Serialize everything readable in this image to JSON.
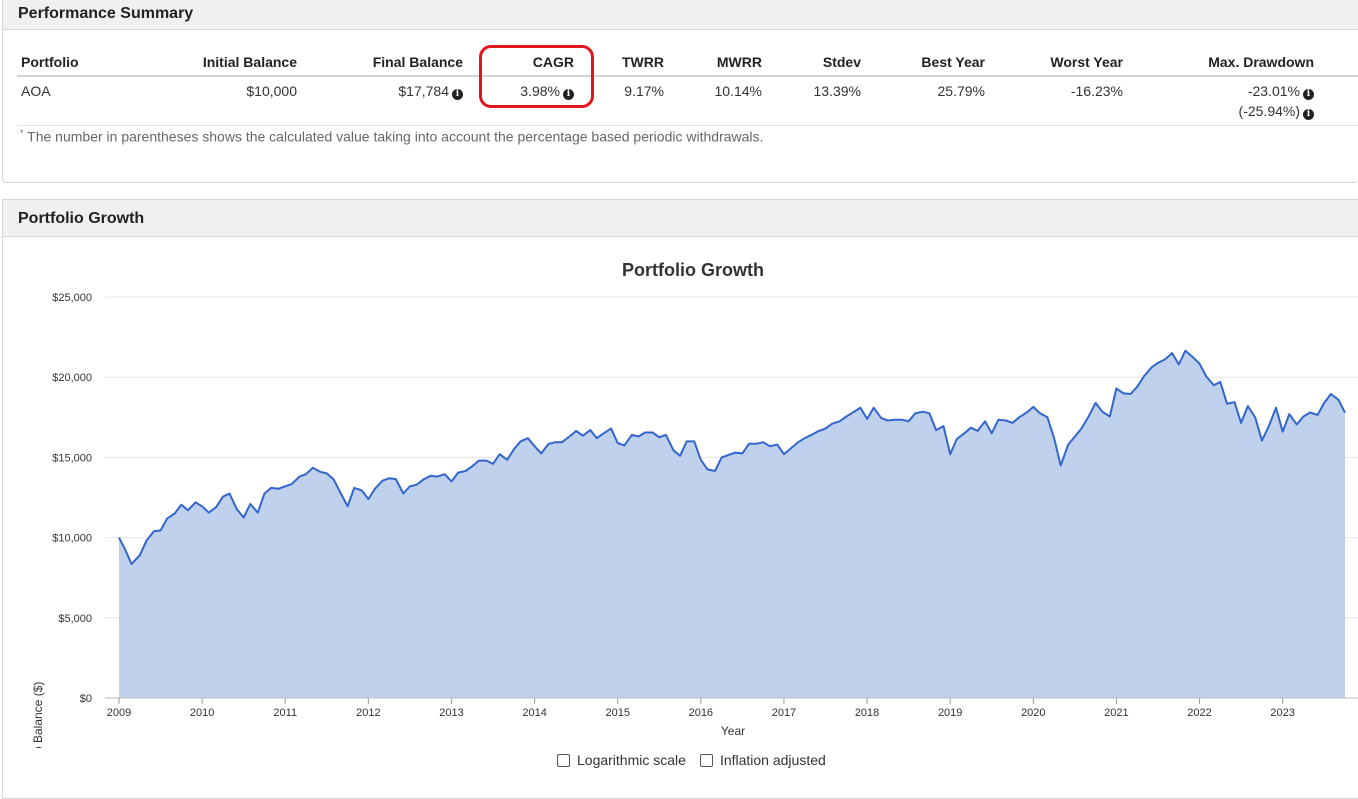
{
  "performance": {
    "title": "Performance Summary",
    "columns": [
      "Portfolio",
      "Initial Balance",
      "Final Balance",
      "CAGR",
      "TWRR",
      "MWRR",
      "Stdev",
      "Best Year",
      "Worst Year",
      "Max. Drawdown"
    ],
    "row": {
      "portfolio": "AOA",
      "initial_balance": "$10,000",
      "final_balance": "$17,784",
      "cagr": "3.98%",
      "twrr": "9.17%",
      "mwrr": "10.14%",
      "stdev": "13.39%",
      "best_year": "25.79%",
      "worst_year": "-16.23%",
      "max_drawdown": "-23.01%",
      "max_drawdown_withdrawals": "(-25.94%)"
    },
    "footnote_mark": "*",
    "footnote": "The number in parentheses shows the calculated value taking into account the percentage based periodic withdrawals.",
    "highlight_color": "#e0161c"
  },
  "growth": {
    "title": "Portfolio Growth",
    "options": [
      "Logarithmic scale",
      "Inflation adjusted"
    ]
  },
  "chart_data": {
    "type": "area",
    "title": "Portfolio Growth",
    "xlabel": "Year",
    "ylabel": "Portfolio Balance ($)",
    "xlim": [
      2009,
      2023.75
    ],
    "ylim": [
      0,
      25000
    ],
    "x_ticks": [
      "2009",
      "2010",
      "2011",
      "2012",
      "2013",
      "2014",
      "2015",
      "2016",
      "2017",
      "2018",
      "2019",
      "2020",
      "2021",
      "2022",
      "2023"
    ],
    "y_ticks": [
      "$0",
      "$5,000",
      "$10,000",
      "$15,000",
      "$20,000",
      "$25,000"
    ],
    "y_tick_values": [
      0,
      5000,
      10000,
      15000,
      20000,
      25000
    ],
    "grid": true,
    "line_color": "#3366cc",
    "fill_color": "#c0d1ee",
    "series": [
      {
        "name": "AOA",
        "points": [
          [
            2009.0,
            10000
          ],
          [
            2009.08,
            9200
          ],
          [
            2009.15,
            8350
          ],
          [
            2009.25,
            8900
          ],
          [
            2009.33,
            9800
          ],
          [
            2009.42,
            10400
          ],
          [
            2009.5,
            10450
          ],
          [
            2009.58,
            11200
          ],
          [
            2009.67,
            11500
          ],
          [
            2009.75,
            12050
          ],
          [
            2009.83,
            11700
          ],
          [
            2009.92,
            12200
          ],
          [
            2010.0,
            11950
          ],
          [
            2010.08,
            11550
          ],
          [
            2010.17,
            11900
          ],
          [
            2010.25,
            12550
          ],
          [
            2010.33,
            12750
          ],
          [
            2010.42,
            11750
          ],
          [
            2010.5,
            11250
          ],
          [
            2010.58,
            12100
          ],
          [
            2010.67,
            11550
          ],
          [
            2010.75,
            12750
          ],
          [
            2010.83,
            13100
          ],
          [
            2010.92,
            13050
          ],
          [
            2011.0,
            13200
          ],
          [
            2011.08,
            13350
          ],
          [
            2011.17,
            13800
          ],
          [
            2011.25,
            13950
          ],
          [
            2011.33,
            14350
          ],
          [
            2011.42,
            14100
          ],
          [
            2011.5,
            14000
          ],
          [
            2011.58,
            13650
          ],
          [
            2011.67,
            12750
          ],
          [
            2011.75,
            11950
          ],
          [
            2011.83,
            13100
          ],
          [
            2011.92,
            12950
          ],
          [
            2012.0,
            12400
          ],
          [
            2012.08,
            13050
          ],
          [
            2012.17,
            13550
          ],
          [
            2012.25,
            13700
          ],
          [
            2012.33,
            13650
          ],
          [
            2012.42,
            12750
          ],
          [
            2012.5,
            13200
          ],
          [
            2012.58,
            13300
          ],
          [
            2012.67,
            13650
          ],
          [
            2012.75,
            13850
          ],
          [
            2012.83,
            13800
          ],
          [
            2012.92,
            13950
          ],
          [
            2013.0,
            13500
          ],
          [
            2013.08,
            14050
          ],
          [
            2013.17,
            14150
          ],
          [
            2013.25,
            14450
          ],
          [
            2013.33,
            14800
          ],
          [
            2013.42,
            14800
          ],
          [
            2013.5,
            14600
          ],
          [
            2013.58,
            15200
          ],
          [
            2013.67,
            14850
          ],
          [
            2013.75,
            15500
          ],
          [
            2013.83,
            16000
          ],
          [
            2013.92,
            16200
          ],
          [
            2014.0,
            15700
          ],
          [
            2014.08,
            15250
          ],
          [
            2014.17,
            15850
          ],
          [
            2014.25,
            15950
          ],
          [
            2014.33,
            15950
          ],
          [
            2014.42,
            16300
          ],
          [
            2014.5,
            16650
          ],
          [
            2014.58,
            16350
          ],
          [
            2014.67,
            16700
          ],
          [
            2014.75,
            16200
          ],
          [
            2014.83,
            16500
          ],
          [
            2014.92,
            16800
          ],
          [
            2015.0,
            15900
          ],
          [
            2015.08,
            15750
          ],
          [
            2015.17,
            16400
          ],
          [
            2015.25,
            16300
          ],
          [
            2015.33,
            16550
          ],
          [
            2015.42,
            16550
          ],
          [
            2015.5,
            16250
          ],
          [
            2015.58,
            16400
          ],
          [
            2015.67,
            15450
          ],
          [
            2015.75,
            15100
          ],
          [
            2015.83,
            16000
          ],
          [
            2015.92,
            16000
          ],
          [
            2016.0,
            14850
          ],
          [
            2016.08,
            14250
          ],
          [
            2016.17,
            14150
          ],
          [
            2016.25,
            15000
          ],
          [
            2016.33,
            15150
          ],
          [
            2016.42,
            15300
          ],
          [
            2016.5,
            15250
          ],
          [
            2016.58,
            15850
          ],
          [
            2016.67,
            15850
          ],
          [
            2016.75,
            15950
          ],
          [
            2016.83,
            15700
          ],
          [
            2016.92,
            15800
          ],
          [
            2017.0,
            15200
          ],
          [
            2017.08,
            15550
          ],
          [
            2017.17,
            15950
          ],
          [
            2017.25,
            16200
          ],
          [
            2017.33,
            16400
          ],
          [
            2017.42,
            16650
          ],
          [
            2017.5,
            16800
          ],
          [
            2017.58,
            17100
          ],
          [
            2017.67,
            17250
          ],
          [
            2017.75,
            17550
          ],
          [
            2017.83,
            17800
          ],
          [
            2017.92,
            18100
          ],
          [
            2018.0,
            17400
          ],
          [
            2018.08,
            18100
          ],
          [
            2018.17,
            17450
          ],
          [
            2018.25,
            17300
          ],
          [
            2018.33,
            17350
          ],
          [
            2018.42,
            17350
          ],
          [
            2018.5,
            17250
          ],
          [
            2018.58,
            17750
          ],
          [
            2018.67,
            17850
          ],
          [
            2018.75,
            17750
          ],
          [
            2018.83,
            16700
          ],
          [
            2018.92,
            16950
          ],
          [
            2019.0,
            15200
          ],
          [
            2019.08,
            16150
          ],
          [
            2019.17,
            16500
          ],
          [
            2019.25,
            16850
          ],
          [
            2019.33,
            16650
          ],
          [
            2019.42,
            17250
          ],
          [
            2019.5,
            16500
          ],
          [
            2019.58,
            17350
          ],
          [
            2019.67,
            17300
          ],
          [
            2019.75,
            17150
          ],
          [
            2019.83,
            17500
          ],
          [
            2019.92,
            17800
          ],
          [
            2020.0,
            18150
          ],
          [
            2020.08,
            17750
          ],
          [
            2020.17,
            17500
          ],
          [
            2020.25,
            16200
          ],
          [
            2020.33,
            14500
          ],
          [
            2020.42,
            15800
          ],
          [
            2020.5,
            16300
          ],
          [
            2020.58,
            16800
          ],
          [
            2020.67,
            17600
          ],
          [
            2020.75,
            18400
          ],
          [
            2020.83,
            17850
          ],
          [
            2020.92,
            17550
          ],
          [
            2021.0,
            19300
          ],
          [
            2021.08,
            19000
          ],
          [
            2021.17,
            18950
          ],
          [
            2021.25,
            19400
          ],
          [
            2021.33,
            20050
          ],
          [
            2021.42,
            20600
          ],
          [
            2021.5,
            20900
          ],
          [
            2021.58,
            21100
          ],
          [
            2021.67,
            21500
          ],
          [
            2021.75,
            20800
          ],
          [
            2021.83,
            21650
          ],
          [
            2021.92,
            21250
          ],
          [
            2022.0,
            20850
          ],
          [
            2022.08,
            20050
          ],
          [
            2022.17,
            19500
          ],
          [
            2022.25,
            19700
          ],
          [
            2022.33,
            18350
          ],
          [
            2022.42,
            18450
          ],
          [
            2022.5,
            17150
          ],
          [
            2022.58,
            18200
          ],
          [
            2022.67,
            17500
          ],
          [
            2022.75,
            16050
          ],
          [
            2022.83,
            16900
          ],
          [
            2022.92,
            18100
          ],
          [
            2023.0,
            16600
          ],
          [
            2023.08,
            17700
          ],
          [
            2023.17,
            17050
          ],
          [
            2023.25,
            17550
          ],
          [
            2023.33,
            17800
          ],
          [
            2023.42,
            17650
          ],
          [
            2023.5,
            18400
          ],
          [
            2023.58,
            18950
          ],
          [
            2023.67,
            18600
          ],
          [
            2023.75,
            17784
          ]
        ]
      }
    ]
  }
}
